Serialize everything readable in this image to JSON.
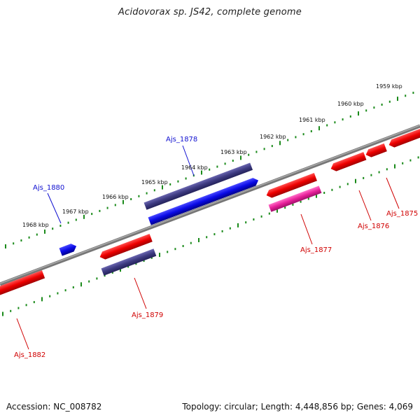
{
  "title": "Acidovorax sp. JS42, complete genome",
  "footer": {
    "accession": "Accession: NC_008782",
    "summary": "Topology: circular; Length: 4,448,856 bp; Genes: 4,069"
  },
  "kbp_labels": [
    "1959 kbp",
    "1960 kbp",
    "1961 kbp",
    "1962 kbp",
    "1963 kbp",
    "1964 kbp",
    "1965 kbp",
    "1966 kbp",
    "1967 kbp",
    "1968 kbp"
  ],
  "genes": [
    {
      "name": "Ajs_1875",
      "strand": "minus",
      "color": "#e00000"
    },
    {
      "name": "Ajs_1876",
      "strand": "minus",
      "color": "#e00000"
    },
    {
      "name": "Ajs_1877",
      "strand": "minus",
      "color": "#e00000"
    },
    {
      "name": "Ajs_1878",
      "strand": "plus",
      "color": "#1010e0"
    },
    {
      "name": "Ajs_1879",
      "strand": "minus",
      "color": "#e00000"
    },
    {
      "name": "Ajs_1880",
      "strand": "plus",
      "color": "#1010e0"
    },
    {
      "name": "Ajs_1882",
      "strand": "minus",
      "color": "#e00000"
    }
  ],
  "colors": {
    "backbone": "#888888",
    "tick": "#1a8a1a",
    "plus_gene": "#1010e0",
    "minus_gene": "#e00000",
    "plus_feature": "#3d3a80",
    "minus_feature": "#e8209a",
    "plus_label": "#1010d0",
    "minus_label": "#d00000"
  }
}
